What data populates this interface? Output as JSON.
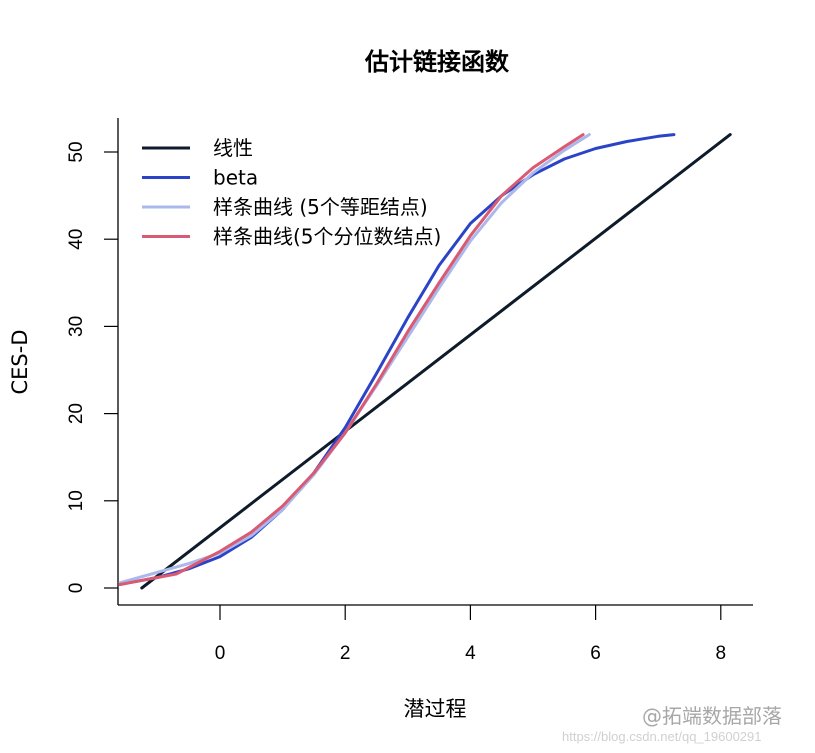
{
  "chart_data": {
    "type": "line",
    "title": "估计链接函数",
    "xlabel": "潜过程",
    "ylabel": "CES-D",
    "xlim": [
      -1.6,
      8.5
    ],
    "ylim": [
      -2,
      54
    ],
    "xticks": [
      0,
      2,
      4,
      6,
      8
    ],
    "xtick_labels": [
      "0",
      "2",
      "4",
      "6",
      "8"
    ],
    "yticks": [
      0,
      10,
      20,
      30,
      40,
      50
    ],
    "ytick_labels": [
      "0",
      "10",
      "20",
      "30",
      "40",
      "50"
    ],
    "grid": false,
    "legend_position": "topleft",
    "series": [
      {
        "name": "线性",
        "color": "#0d1b2a",
        "x": [
          -1.25,
          8.15
        ],
        "y": [
          0,
          52
        ]
      },
      {
        "name": "beta",
        "color": "#2a44c8",
        "x": [
          -1.6,
          -1.0,
          -0.5,
          0.0,
          0.5,
          1.0,
          1.5,
          2.0,
          2.5,
          3.0,
          3.5,
          4.0,
          4.5,
          5.0,
          5.5,
          6.0,
          6.5,
          7.0,
          7.25
        ],
        "y": [
          0.4,
          1.2,
          2.2,
          3.6,
          5.8,
          9.0,
          13.2,
          18.4,
          24.6,
          31.0,
          37.0,
          41.8,
          45.0,
          47.4,
          49.2,
          50.4,
          51.2,
          51.8,
          52.0
        ]
      },
      {
        "name": "样条曲线 (5个等距结点)",
        "color": "#aab8ec",
        "x": [
          -1.6,
          -1.0,
          -0.5,
          0.0,
          0.5,
          1.0,
          1.5,
          2.0,
          2.5,
          3.0,
          3.5,
          4.0,
          4.5,
          5.0,
          5.5,
          5.9
        ],
        "y": [
          0.6,
          1.8,
          2.8,
          4.0,
          6.0,
          9.0,
          13.0,
          17.8,
          23.2,
          28.8,
          34.4,
          39.8,
          44.2,
          47.6,
          50.2,
          52.0
        ]
      },
      {
        "name": "样条曲线(5个分位数结点)",
        "color": "#d95a72",
        "x": [
          -1.6,
          -1.0,
          -0.7,
          0.0,
          0.5,
          1.0,
          1.5,
          2.0,
          2.5,
          3.0,
          3.5,
          4.0,
          4.5,
          5.0,
          5.5,
          5.8
        ],
        "y": [
          0.4,
          1.2,
          1.6,
          4.2,
          6.4,
          9.4,
          13.2,
          17.8,
          23.4,
          29.4,
          35.0,
          40.4,
          45.0,
          48.2,
          50.6,
          52.0
        ]
      }
    ]
  },
  "watermark": {
    "line1": "@拓端数据部落",
    "line2": "https://blog.csdn.net/qq_19600291"
  }
}
